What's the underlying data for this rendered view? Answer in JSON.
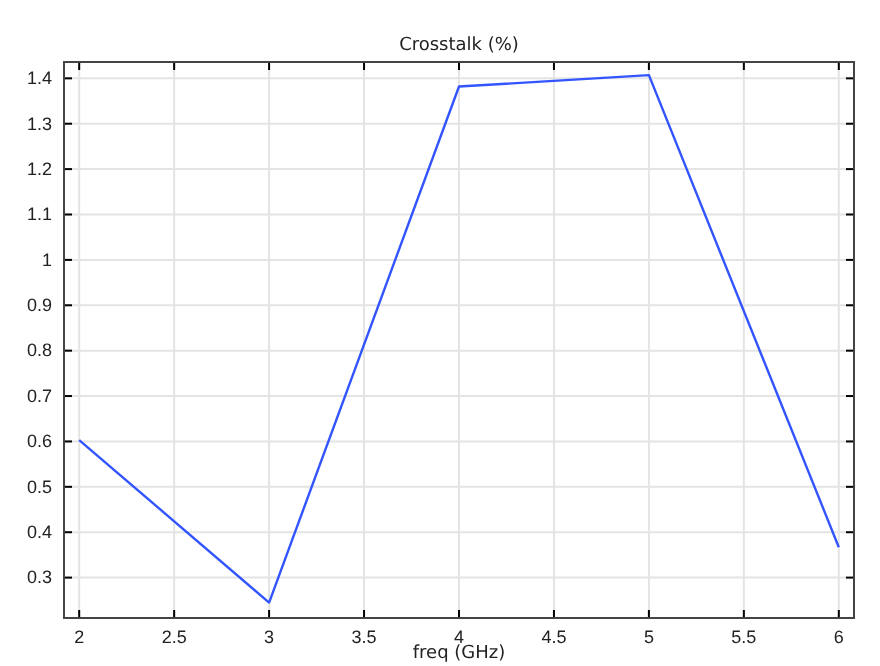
{
  "chart_data": {
    "type": "line",
    "title": "Crosstalk (%)",
    "xlabel": "freq (GHz)",
    "x": [
      2,
      3,
      4,
      5,
      6
    ],
    "series": [
      {
        "color": "#3355ff",
        "values": [
          0.603,
          0.245,
          1.382,
          1.407,
          0.367
        ]
      }
    ],
    "xlim": [
      1.92,
      6.08
    ],
    "ylim": [
      0.211,
      1.436
    ],
    "xticks": [
      2,
      2.5,
      3,
      3.5,
      4,
      4.5,
      5,
      5.5,
      6
    ],
    "yticks": [
      0.3,
      0.4,
      0.5,
      0.6,
      0.7,
      0.8,
      0.9,
      1,
      1.1,
      1.2,
      1.3,
      1.4
    ],
    "grid": true,
    "marker": "none",
    "line_style": "solid"
  }
}
